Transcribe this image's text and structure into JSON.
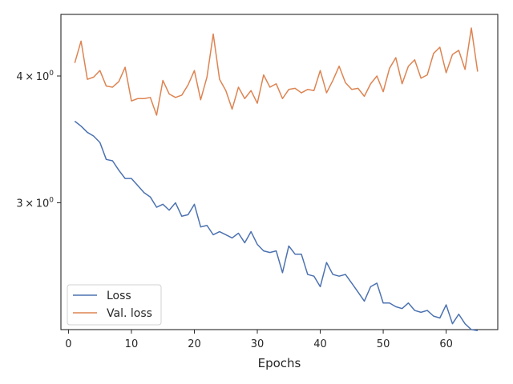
{
  "chart_data": {
    "type": "line",
    "title": "",
    "xlabel": "Epochs",
    "ylabel": "",
    "y_scale": "log",
    "xlim": [
      -1.2,
      68.2
    ],
    "ylim": [
      2.25,
      4.6
    ],
    "x_ticks": [
      0,
      10,
      20,
      30,
      40,
      50,
      60
    ],
    "x_tick_labels": [
      "0",
      "10",
      "20",
      "30",
      "40",
      "50",
      "60"
    ],
    "y_ticks": [
      3,
      4
    ],
    "y_tick_labels": [
      {
        "mantissa": "3",
        "times": "×",
        "base": "10",
        "exponent": "0"
      },
      {
        "mantissa": "4",
        "times": "×",
        "base": "10",
        "exponent": "0"
      }
    ],
    "grid": false,
    "legend_position": "lower-left",
    "x": [
      1,
      2,
      3,
      4,
      5,
      6,
      7,
      8,
      9,
      10,
      11,
      12,
      13,
      14,
      15,
      16,
      17,
      18,
      19,
      20,
      21,
      22,
      23,
      24,
      25,
      26,
      27,
      28,
      29,
      30,
      31,
      32,
      33,
      34,
      35,
      36,
      37,
      38,
      39,
      40,
      41,
      42,
      43,
      44,
      45,
      46,
      47,
      48,
      49,
      50,
      51,
      52,
      53,
      54,
      55,
      56,
      57,
      58,
      59,
      60,
      61,
      62,
      63,
      64,
      65
    ],
    "series": [
      {
        "name": "Loss",
        "color": "#4c72b0",
        "values": [
          3.61,
          3.57,
          3.52,
          3.49,
          3.44,
          3.31,
          3.3,
          3.23,
          3.17,
          3.17,
          3.12,
          3.07,
          3.04,
          2.97,
          2.99,
          2.95,
          3.0,
          2.91,
          2.92,
          2.99,
          2.84,
          2.85,
          2.79,
          2.81,
          2.79,
          2.77,
          2.8,
          2.74,
          2.81,
          2.73,
          2.69,
          2.68,
          2.69,
          2.56,
          2.72,
          2.67,
          2.67,
          2.55,
          2.54,
          2.48,
          2.62,
          2.55,
          2.54,
          2.55,
          2.5,
          2.45,
          2.4,
          2.48,
          2.5,
          2.39,
          2.39,
          2.37,
          2.36,
          2.39,
          2.35,
          2.34,
          2.35,
          2.32,
          2.31,
          2.38,
          2.28,
          2.33,
          2.28,
          2.25,
          2.245
        ]
      },
      {
        "name": "Val. loss",
        "color": "#dd8452",
        "values": [
          4.12,
          4.33,
          3.97,
          3.99,
          4.05,
          3.91,
          3.9,
          3.95,
          4.08,
          3.78,
          3.8,
          3.8,
          3.81,
          3.66,
          3.96,
          3.84,
          3.81,
          3.83,
          3.92,
          4.05,
          3.79,
          3.99,
          4.4,
          3.97,
          3.87,
          3.71,
          3.9,
          3.8,
          3.87,
          3.76,
          4.01,
          3.9,
          3.93,
          3.8,
          3.88,
          3.89,
          3.85,
          3.88,
          3.87,
          4.05,
          3.85,
          3.96,
          4.09,
          3.94,
          3.88,
          3.89,
          3.82,
          3.93,
          4.0,
          3.86,
          4.07,
          4.17,
          3.93,
          4.09,
          4.15,
          3.98,
          4.01,
          4.21,
          4.27,
          4.03,
          4.2,
          4.24,
          4.06,
          4.46,
          4.04
        ]
      }
    ]
  }
}
